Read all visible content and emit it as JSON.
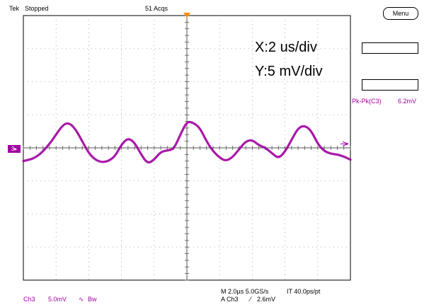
{
  "header": {
    "brand": "Tek",
    "status": "Stopped",
    "acqs": "51 Acqs",
    "menu_label": "Menu"
  },
  "annotations": {
    "x_scale": "X:2 us/div",
    "y_scale": "Y:5 mV/div"
  },
  "measurement": {
    "label": "Pk-Pk(C3)",
    "value": "6.2mV"
  },
  "channel": {
    "marker": "3",
    "name": "Ch3",
    "scale": "5.0mV",
    "bw_symbol": "∿",
    "bw_label": "Bw"
  },
  "footer": {
    "timebase": "M 2.0µs 5.0GS/s",
    "interval": "IT 40.0ps/pt",
    "trigger_source": "A  Ch3",
    "trigger_slope": "⁄",
    "trigger_level": "2.6mV"
  },
  "colors": {
    "trace": "#a000a0",
    "grid": "#9a9a9a",
    "trigger_marker": "#ff8c00"
  },
  "chart_data": {
    "type": "line",
    "xlabel": "",
    "ylabel": "",
    "x_units": "us",
    "y_units": "mV",
    "xlim": [
      -10,
      10
    ],
    "ylim": [
      -20,
      20
    ],
    "x_divisions": 10,
    "y_divisions": 8,
    "grid": true,
    "series": [
      {
        "x": [
          -10.0,
          -9.2,
          -8.4,
          -7.6,
          -7.2,
          -6.8,
          -6.4,
          -6.0,
          -5.6,
          -5.2,
          -4.8,
          -4.4,
          -4.0,
          -3.6,
          -3.2,
          -2.8,
          -2.4,
          -2.0,
          -1.6,
          -1.2,
          -0.8,
          -0.4,
          0.0,
          0.4,
          0.8,
          1.2,
          1.6,
          2.0,
          2.4,
          2.8,
          3.2,
          3.6,
          4.0,
          4.4,
          4.8,
          5.2,
          5.6,
          6.0,
          6.4,
          6.8,
          7.2,
          7.6,
          8.0,
          8.4,
          8.8,
          9.2,
          9.6,
          10.0
        ],
        "values": [
          -2.0,
          -1.5,
          0.5,
          3.5,
          3.8,
          2.8,
          1.0,
          -0.8,
          -1.8,
          -2.2,
          -2.0,
          -1.3,
          0.5,
          1.5,
          0.8,
          -1.0,
          -2.4,
          -1.8,
          -0.6,
          -0.4,
          -0.2,
          2.0,
          4.0,
          3.8,
          3.0,
          1.0,
          -0.5,
          -1.5,
          -2.0,
          -1.4,
          -0.2,
          1.0,
          1.2,
          0.4,
          0.0,
          -0.8,
          -1.6,
          -0.6,
          1.2,
          3.0,
          3.4,
          2.6,
          0.6,
          -0.5,
          -0.9,
          -1.0,
          -1.3,
          -1.8
        ]
      }
    ]
  }
}
